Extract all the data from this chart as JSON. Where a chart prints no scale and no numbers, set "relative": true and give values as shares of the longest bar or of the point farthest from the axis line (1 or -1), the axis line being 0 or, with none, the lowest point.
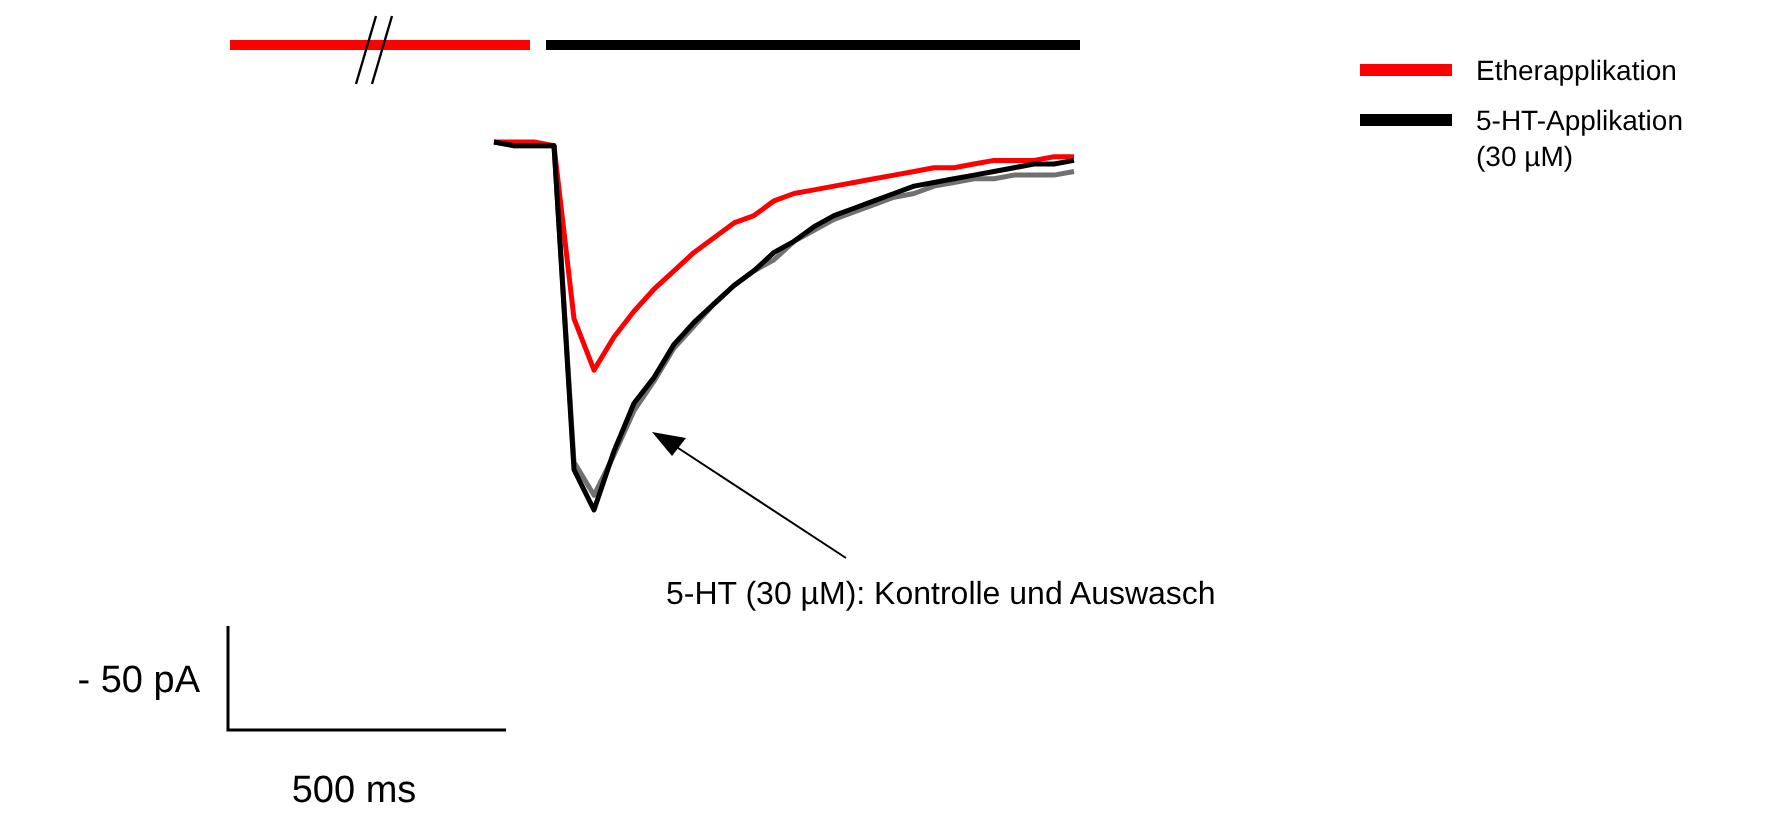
{
  "chart_data": {
    "type": "line",
    "relative": true,
    "legend": "top right",
    "line_style": "solid",
    "marker": "none",
    "categories": [
      null,
      null,
      null,
      null,
      null,
      null,
      null,
      null,
      null,
      null,
      null,
      null,
      null,
      null,
      null,
      null,
      null,
      null,
      null,
      null,
      null,
      null,
      null,
      null,
      null,
      null,
      null,
      null,
      null,
      null
    ],
    "series": [
      {
        "color": "#707070",
        "values": [
          1,
          0.99,
          0.99,
          0.99,
          0.13,
          0.04,
          0.15,
          0.27,
          0.35,
          0.44,
          0.5,
          0.56,
          0.61,
          0.65,
          0.68,
          0.73,
          0.76,
          0.79,
          0.81,
          0.83,
          0.85,
          0.86,
          0.88,
          0.89,
          0.9,
          0.9,
          0.91,
          0.91,
          0.91,
          0.92
        ]
      },
      {
        "name": "Etherapplikation",
        "color": "#ff0000",
        "values": [
          1,
          1,
          1,
          0.99,
          0.52,
          0.38,
          0.47,
          0.54,
          0.6,
          0.65,
          0.7,
          0.74,
          0.78,
          0.8,
          0.84,
          0.86,
          0.87,
          0.88,
          0.89,
          0.9,
          0.91,
          0.92,
          0.93,
          0.93,
          0.94,
          0.95,
          0.95,
          0.95,
          0.96,
          0.96
        ]
      },
      {
        "name": "5-HT-Applikation\n(30 µM)",
        "color": "#000000",
        "values": [
          1,
          0.99,
          0.99,
          0.99,
          0.11,
          0,
          0.16,
          0.29,
          0.36,
          0.45,
          0.51,
          0.56,
          0.61,
          0.65,
          0.7,
          0.73,
          0.77,
          0.8,
          0.82,
          0.84,
          0.86,
          0.88,
          0.89,
          0.9,
          0.91,
          0.92,
          0.93,
          0.94,
          0.94,
          0.95
        ]
      }
    ],
    "annotations": [
      "5-HT (30 µM): Kontrolle und Auswasch",
      "- 50 pA",
      "500 ms"
    ]
  }
}
